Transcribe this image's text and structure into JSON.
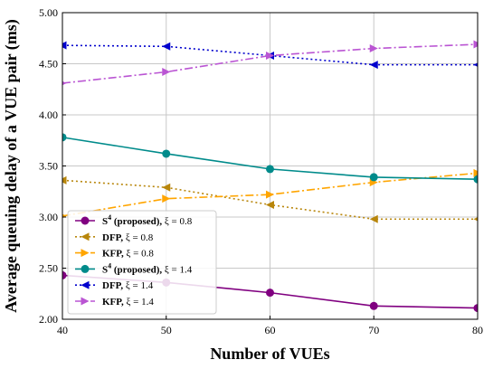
{
  "chart_data": {
    "type": "line",
    "xlabel": "Number of VUEs",
    "ylabel": "Average queuing delay of a VUE pair (ms)",
    "x": [
      40,
      50,
      60,
      70,
      80
    ],
    "xlim": [
      40,
      80
    ],
    "ylim": [
      2.0,
      5.0
    ],
    "xticks": [
      "40",
      "50",
      "60",
      "70",
      "80"
    ],
    "yticks": [
      "2.00",
      "2.50",
      "3.00",
      "3.50",
      "4.00",
      "4.50",
      "5.00"
    ],
    "grid": true,
    "legend_position": "lower-left",
    "series": [
      {
        "name": "S4 (proposed), ξ = 0.8",
        "name_bold": "S",
        "name_sup": "4",
        "name_bold2": " (proposed),",
        "name_rest": " ξ = 0.8",
        "color": "#800080",
        "dash": "solid",
        "marker": "circle",
        "values": [
          2.43,
          2.36,
          2.26,
          2.13,
          2.11
        ]
      },
      {
        "name": "DFP, ξ = 0.8",
        "name_bold": "DFP,",
        "name_rest": " ξ = 0.8",
        "color": "#b8860b",
        "dash": "dotted",
        "marker": "triangle-left",
        "values": [
          3.36,
          3.29,
          3.12,
          2.98,
          2.98
        ]
      },
      {
        "name": "KFP, ξ = 0.8",
        "name_bold": "KFP,",
        "name_rest": " ξ = 0.8",
        "color": "#ffa500",
        "dash": "dashdot",
        "marker": "triangle-right",
        "values": [
          3.01,
          3.18,
          3.22,
          3.34,
          3.43
        ]
      },
      {
        "name": "S4 (proposed), ξ = 1.4",
        "name_bold": "S",
        "name_sup": "4",
        "name_bold2": " (proposed),",
        "name_rest": " ξ = 1.4",
        "color": "#008b8b",
        "dash": "solid",
        "marker": "circle",
        "values": [
          3.78,
          3.62,
          3.47,
          3.39,
          3.37
        ]
      },
      {
        "name": "DFP, ξ = 1.4",
        "name_bold": "DFP,",
        "name_rest": " ξ = 1.4",
        "color": "#0000cd",
        "dash": "dotted",
        "marker": "triangle-left",
        "values": [
          4.68,
          4.67,
          4.58,
          4.49,
          4.49
        ]
      },
      {
        "name": "KFP, ξ = 1.4",
        "name_bold": "KFP,",
        "name_rest": " ξ = 1.4",
        "color": "#ba55d3",
        "dash": "dashdot",
        "marker": "triangle-right",
        "values": [
          4.31,
          4.42,
          4.58,
          4.65,
          4.69
        ]
      }
    ]
  }
}
